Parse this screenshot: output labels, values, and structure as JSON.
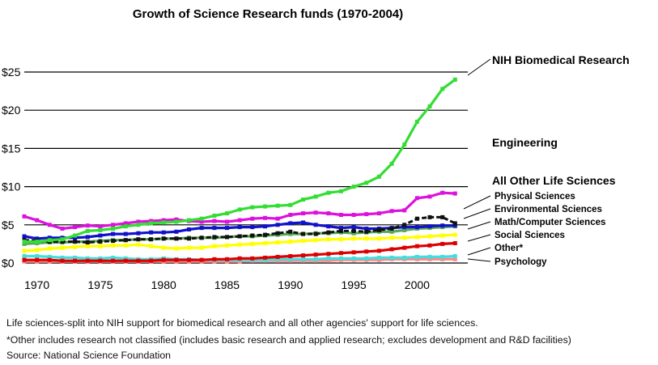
{
  "chart_data": {
    "type": "line",
    "title": "Growth of Science Research funds (1970-2004)",
    "xlabel": "",
    "ylabel": "",
    "x_ticks": [
      "1970",
      "1975",
      "1980",
      "1985",
      "1990",
      "1995",
      "2000"
    ],
    "y_ticks": [
      "$0",
      "$5",
      "$10",
      "$15",
      "$20",
      "$25"
    ],
    "xlim": [
      1969,
      2004
    ],
    "ylim": [
      0,
      25
    ],
    "grid": "horizontal",
    "x": [
      1969,
      1970,
      1971,
      1972,
      1973,
      1974,
      1975,
      1976,
      1977,
      1978,
      1979,
      1980,
      1981,
      1982,
      1983,
      1984,
      1985,
      1986,
      1987,
      1988,
      1989,
      1990,
      1991,
      1992,
      1993,
      1994,
      1995,
      1996,
      1997,
      1998,
      1999,
      2000,
      2001,
      2002,
      2003
    ],
    "series": [
      {
        "name": "NIH Biomedical Research",
        "color": "#33dd33",
        "values": [
          2.8,
          2.8,
          3.0,
          3.1,
          3.6,
          4.2,
          4.3,
          4.5,
          4.8,
          5.0,
          5.2,
          5.3,
          5.4,
          5.6,
          5.8,
          6.2,
          6.5,
          7.0,
          7.3,
          7.4,
          7.5,
          7.6,
          8.3,
          8.7,
          9.2,
          9.4,
          10.0,
          10.5,
          11.3,
          13.0,
          15.5,
          18.5,
          20.5,
          22.8,
          24.0
        ]
      },
      {
        "name": "Engineering",
        "color": "#dd11dd",
        "values": [
          6.1,
          5.6,
          5.0,
          4.5,
          4.7,
          4.9,
          4.8,
          5.0,
          5.2,
          5.4,
          5.5,
          5.6,
          5.7,
          5.5,
          5.4,
          5.5,
          5.4,
          5.6,
          5.8,
          5.9,
          5.8,
          6.3,
          6.5,
          6.6,
          6.5,
          6.3,
          6.3,
          6.4,
          6.5,
          6.8,
          6.9,
          8.5,
          8.7,
          9.2,
          9.1
        ]
      },
      {
        "name": "All Other Life Sciences",
        "color": "#111111",
        "values": [
          3.0,
          2.9,
          2.8,
          2.8,
          2.8,
          2.7,
          2.8,
          2.9,
          3.0,
          3.1,
          3.1,
          3.2,
          3.2,
          3.2,
          3.3,
          3.4,
          3.4,
          3.5,
          3.6,
          3.7,
          3.9,
          4.1,
          3.8,
          3.8,
          4.0,
          4.2,
          4.2,
          4.1,
          4.3,
          4.5,
          5.0,
          5.8,
          6.0,
          6.0,
          5.2
        ]
      },
      {
        "name": "Physical Sciences",
        "color": "#1111cc",
        "values": [
          3.5,
          3.2,
          3.3,
          3.3,
          3.3,
          3.4,
          3.6,
          3.8,
          3.8,
          3.9,
          4.0,
          4.0,
          4.1,
          4.4,
          4.6,
          4.6,
          4.6,
          4.7,
          4.7,
          4.8,
          5.0,
          5.2,
          5.3,
          5.0,
          4.8,
          4.6,
          4.7,
          4.5,
          4.5,
          4.6,
          4.7,
          4.7,
          4.8,
          4.9,
          4.9
        ]
      },
      {
        "name": "Environmental Sciences",
        "color": "#55aa55",
        "values": [
          2.5,
          2.6,
          2.7,
          2.7,
          2.8,
          2.8,
          2.9,
          3.0,
          3.0,
          3.1,
          3.1,
          3.2,
          3.2,
          3.3,
          3.3,
          3.3,
          3.4,
          3.5,
          3.5,
          3.6,
          3.7,
          3.8,
          3.8,
          3.9,
          3.9,
          4.0,
          3.9,
          4.0,
          4.1,
          4.1,
          4.3,
          4.5,
          4.6,
          4.7,
          4.8
        ]
      },
      {
        "name": "Math/Computer Sciences",
        "color": "#ffff00",
        "values": [
          1.6,
          1.7,
          1.9,
          2.0,
          2.1,
          2.2,
          2.2,
          2.3,
          2.3,
          2.4,
          2.2,
          2.0,
          1.9,
          2.0,
          2.0,
          2.2,
          2.3,
          2.4,
          2.5,
          2.6,
          2.7,
          2.8,
          2.9,
          3.0,
          3.1,
          3.1,
          3.2,
          3.2,
          3.2,
          3.3,
          3.3,
          3.4,
          3.5,
          3.6,
          3.7
        ]
      },
      {
        "name": "Social Sciences",
        "color": "#dd0000",
        "values": [
          0.4,
          0.4,
          0.4,
          0.3,
          0.3,
          0.3,
          0.3,
          0.3,
          0.3,
          0.3,
          0.3,
          0.4,
          0.4,
          0.4,
          0.4,
          0.5,
          0.5,
          0.6,
          0.6,
          0.7,
          0.8,
          0.9,
          1.0,
          1.1,
          1.2,
          1.3,
          1.4,
          1.5,
          1.6,
          1.8,
          2.0,
          2.2,
          2.3,
          2.5,
          2.6
        ]
      },
      {
        "name": "Other*",
        "color": "#44dddd",
        "values": [
          0.9,
          0.9,
          0.8,
          0.7,
          0.7,
          0.6,
          0.6,
          0.7,
          0.6,
          0.5,
          0.5,
          0.6,
          0.5,
          0.5,
          0.4,
          0.4,
          0.4,
          0.4,
          0.4,
          0.4,
          0.5,
          0.5,
          0.5,
          0.5,
          0.6,
          0.6,
          0.6,
          0.6,
          0.7,
          0.7,
          0.7,
          0.8,
          0.8,
          0.8,
          0.9
        ]
      },
      {
        "name": "Psychology",
        "color": "#ff8888",
        "values": [
          0.2,
          0.2,
          0.2,
          0.2,
          0.2,
          0.2,
          0.2,
          0.2,
          0.2,
          0.2,
          0.2,
          0.2,
          0.2,
          0.2,
          0.2,
          0.2,
          0.2,
          0.2,
          0.3,
          0.3,
          0.3,
          0.3,
          0.3,
          0.3,
          0.3,
          0.4,
          0.4,
          0.4,
          0.4,
          0.5,
          0.5,
          0.5,
          0.5,
          0.5,
          0.5
        ]
      }
    ],
    "footnotes": [
      "Life sciences-split into NIH support for biomedical research and all other agencies' support for life sciences.",
      "*Other includes research not classified (includes basic research and applied research; excludes development and R&D facilities)",
      "Source: National Science Foundation"
    ]
  }
}
